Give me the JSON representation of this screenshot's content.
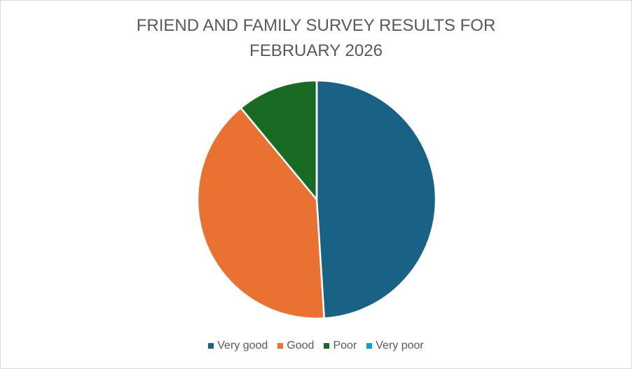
{
  "chart_data": {
    "type": "pie",
    "title": "FRIEND AND FAMILY SURVEY RESULTS FOR FEBRUARY 2026",
    "categories": [
      "Very good",
      "Good",
      "Poor",
      "Very poor"
    ],
    "values": [
      49,
      40,
      11,
      0
    ],
    "colors": [
      "#196285",
      "#e97132",
      "#196b24",
      "#0f9ed5"
    ],
    "legend": "bottom"
  }
}
